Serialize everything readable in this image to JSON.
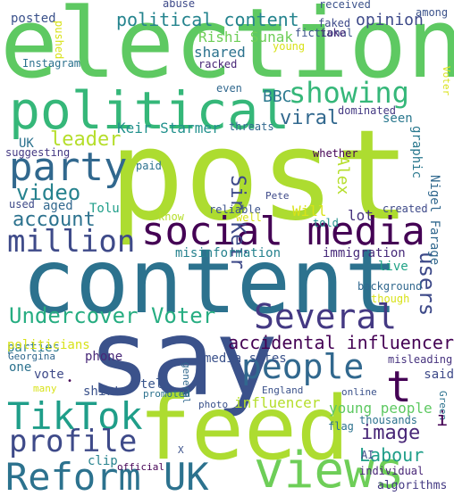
{
  "words": [
    {
      "id": "election",
      "text": "election",
      "color": "#5ec962"
    },
    {
      "id": "post",
      "text": "post",
      "color": "#addc30"
    },
    {
      "id": "content",
      "text": "content",
      "color": "#2c728e"
    },
    {
      "id": "say",
      "text": "say",
      "color": "#3b528b"
    },
    {
      "id": "feed",
      "text": "feed",
      "color": "#addc30"
    },
    {
      "id": "political",
      "text": "political",
      "color": "#35b779"
    },
    {
      "id": "social-media",
      "text": "social media",
      "color": "#440154"
    },
    {
      "id": "tiktok",
      "text": "TikTok",
      "color": "#1f9e89"
    },
    {
      "id": "reform-uk",
      "text": "Reform UK",
      "color": "#2c728e"
    },
    {
      "id": "views",
      "text": "views",
      "color": "#6ece58"
    },
    {
      "id": "party",
      "text": "party",
      "color": "#31688e"
    },
    {
      "id": "million",
      "text": "million",
      "color": "#3e4a89"
    },
    {
      "id": "several",
      "text": "Several",
      "color": "#443983"
    },
    {
      "id": "people",
      "text": "people",
      "color": "#31688e"
    },
    {
      "id": "profile",
      "text": "profile",
      "color": "#3e4a89"
    },
    {
      "id": "showing",
      "text": "showing",
      "color": "#35b779"
    },
    {
      "id": "undercover-voter",
      "text": "Undercover Voter",
      "color": "#26ad81"
    },
    {
      "id": "t",
      "text": "t",
      "color": "#440154"
    },
    {
      "id": "video",
      "text": "video",
      "color": "#26828e"
    },
    {
      "id": "account",
      "text": "account",
      "color": "#2c728e"
    },
    {
      "id": "viral",
      "text": "viral",
      "color": "#31688e"
    },
    {
      "id": "leader",
      "text": "leader",
      "color": "#b5de2b"
    },
    {
      "id": "image",
      "text": "image",
      "color": "#482677"
    },
    {
      "id": "labour",
      "text": "Labour",
      "color": "#1f9e89"
    },
    {
      "id": "accidental-influencer",
      "text": "accidental influencer",
      "color": "#440154"
    },
    {
      "id": "users",
      "text": "users",
      "color": "#3e4a89"
    },
    {
      "id": "political-content",
      "text": "political content",
      "color": "#25848e"
    },
    {
      "id": "keir-starmer",
      "text": "Keir Starmer",
      "color": "#21918c"
    },
    {
      "id": "sir-keir",
      "text": "Sir Keir",
      "color": "#3e4a89"
    },
    {
      "id": "bbc",
      "text": "BBC",
      "color": "#2a788e"
    },
    {
      "id": "shared",
      "text": "shared",
      "color": "#2c728e"
    },
    {
      "id": "rishi-sunak",
      "text": "Rishi Sunak",
      "color": "#6ece58"
    },
    {
      "id": "opinion",
      "text": "opinion",
      "color": "#3e4a89"
    },
    {
      "id": "posted",
      "text": "posted",
      "color": "#3b528b"
    },
    {
      "id": "influencer",
      "text": "influencer",
      "color": "#b5de2b"
    },
    {
      "id": "young-people",
      "text": "young people",
      "color": "#5ec962"
    },
    {
      "id": "alex",
      "text": "Alex",
      "color": "#b5de2b"
    },
    {
      "id": "will",
      "text": "Will",
      "color": "#d8e219"
    },
    {
      "id": "lot",
      "text": "lot",
      "color": "#46327e"
    },
    {
      "id": "nigel-farage",
      "text": "Nigel Farage",
      "color": "#31688e"
    },
    {
      "id": "graphic",
      "text": "graphic",
      "color": "#2a788e"
    },
    {
      "id": "seen",
      "text": "seen",
      "color": "#2a788e"
    },
    {
      "id": "misinformation",
      "text": "misinformation",
      "color": "#26828e"
    },
    {
      "id": "immigration",
      "text": "immigration",
      "color": "#472a7a"
    },
    {
      "id": "live",
      "text": "live",
      "color": "#20a386"
    },
    {
      "id": "vote",
      "text": "vote",
      "color": "#3e4a89"
    },
    {
      "id": "phone",
      "text": "phone",
      "color": "#482878"
    },
    {
      "id": "tell",
      "text": "tell",
      "color": "#39568c"
    },
    {
      "id": "shirt",
      "text": "shirt",
      "color": "#3b528b"
    },
    {
      "id": "clip",
      "text": "clip",
      "color": "#26828e"
    },
    {
      "id": "said",
      "text": "said",
      "color": "#3e4a89"
    },
    {
      "id": "parties",
      "text": "parties",
      "color": "#2a788e"
    },
    {
      "id": "politicians",
      "text": "politicians",
      "color": "#d8e219"
    },
    {
      "id": "media-sites",
      "text": "media sites",
      "color": "#3b528b"
    },
    {
      "id": "one",
      "text": "one",
      "color": "#2c728e"
    },
    {
      "id": "algorithms",
      "text": "algorithms",
      "color": "#443983"
    },
    {
      "id": "tolu",
      "text": "Tolu",
      "color": "#1f9e89"
    },
    {
      "id": "aged",
      "text": "aged",
      "color": "#31688e"
    },
    {
      "id": "used",
      "text": "used",
      "color": "#3e4a89"
    },
    {
      "id": "uk",
      "text": "UK",
      "color": "#2c728e"
    },
    {
      "id": "suggesting",
      "text": "suggesting",
      "color": "#443983"
    },
    {
      "id": "know",
      "text": "know",
      "color": "#b5de2b"
    },
    {
      "id": "reliable",
      "text": "reliable",
      "color": "#3b528b"
    },
    {
      "id": "well",
      "text": "well",
      "color": "#d8e219"
    },
    {
      "id": "told",
      "text": "told",
      "color": "#21918c"
    },
    {
      "id": "created",
      "text": "created",
      "color": "#3e4a89"
    },
    {
      "id": "threats",
      "text": "threats",
      "color": "#31688e"
    },
    {
      "id": "whether",
      "text": "whether",
      "color": "#440154"
    },
    {
      "id": "pete",
      "text": "Pete",
      "color": "#3e4a89"
    },
    {
      "id": "paid",
      "text": "paid",
      "color": "#2c728e"
    },
    {
      "id": "even",
      "text": "even",
      "color": "#31688e"
    },
    {
      "id": "dominated",
      "text": "dominated",
      "color": "#443983"
    },
    {
      "id": "racked",
      "text": "racked",
      "color": "#482677"
    },
    {
      "id": "young",
      "text": "young",
      "color": "#d8e219"
    },
    {
      "id": "fictional",
      "text": "fictional",
      "color": "#3b528b"
    },
    {
      "id": "faked",
      "text": "faked",
      "color": "#3e4a89"
    },
    {
      "id": "received",
      "text": "received",
      "color": "#3b528b"
    },
    {
      "id": "abuse",
      "text": "abuse",
      "color": "#3e4a89"
    },
    {
      "id": "take",
      "text": "take",
      "color": "#482878"
    },
    {
      "id": "among",
      "text": "among",
      "color": "#3b528b"
    },
    {
      "id": "pushed",
      "text": "pushed",
      "color": "#d8e219"
    },
    {
      "id": "instagram",
      "text": "Instagram",
      "color": "#2c728e"
    },
    {
      "id": "voter",
      "text": "Voter",
      "color": "#d8e219"
    },
    {
      "id": "background",
      "text": "background",
      "color": "#31688e"
    },
    {
      "id": "though",
      "text": "though",
      "color": "#d8e219"
    },
    {
      "id": "georgina",
      "text": "Georgina",
      "color": "#31688e"
    },
    {
      "id": "many",
      "text": "many",
      "color": "#d8e219"
    },
    {
      "id": "promoted",
      "text": "promoted",
      "color": "#2c728e"
    },
    {
      "id": "general",
      "text": "general",
      "color": "#31688e"
    },
    {
      "id": "photo",
      "text": "photo",
      "color": "#3b528b"
    },
    {
      "id": "england",
      "text": "England",
      "color": "#3b528b"
    },
    {
      "id": "online",
      "text": "online",
      "color": "#3b528b"
    },
    {
      "id": "green",
      "text": "Green",
      "color": "#2c728e"
    },
    {
      "id": "i",
      "text": "i",
      "color": "#440154"
    },
    {
      "id": "flag",
      "text": "flag",
      "color": "#2c728e"
    },
    {
      "id": "misleading",
      "text": "misleading",
      "color": "#46327e"
    },
    {
      "id": "thousands",
      "text": "thousands",
      "color": "#2c728e"
    },
    {
      "id": "x",
      "text": "X",
      "color": "#3b528b"
    },
    {
      "id": "ai",
      "text": "AI",
      "color": "#3e4a89"
    },
    {
      "id": "individual",
      "text": "individual",
      "color": "#482677"
    },
    {
      "id": "official",
      "text": "official",
      "color": "#440154"
    },
    {
      "id": "dot",
      "text": "•",
      "color": "#440154"
    }
  ]
}
